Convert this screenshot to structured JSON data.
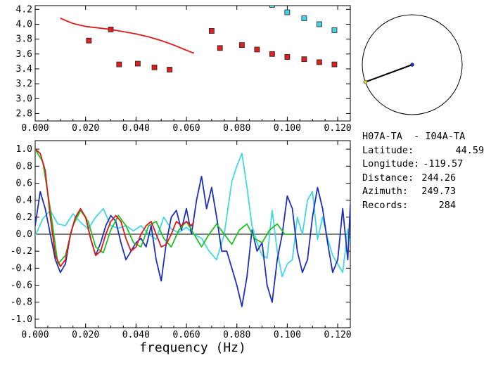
{
  "chart_data": [
    {
      "type": "scatter",
      "xlim": [
        0.0,
        0.125
      ],
      "ylim": [
        2.7,
        4.25
      ],
      "x_ticks": [
        "0.000",
        "0.020",
        "0.040",
        "0.060",
        "0.080",
        "0.100",
        "0.120"
      ],
      "y_ticks": [
        "2.8",
        "3.0",
        "3.2",
        "3.4",
        "3.6",
        "3.8",
        "4.0",
        "4.2"
      ],
      "series": [
        {
          "kind": "line",
          "color": "#dd1a1a",
          "x": [
            0.01,
            0.015,
            0.02,
            0.025,
            0.03,
            0.035,
            0.04,
            0.045,
            0.05,
            0.055,
            0.06,
            0.063
          ],
          "y": [
            4.08,
            4.01,
            3.97,
            3.95,
            3.93,
            3.9,
            3.87,
            3.83,
            3.78,
            3.72,
            3.65,
            3.61
          ]
        },
        {
          "kind": "markers",
          "color": "#dd2020",
          "x": [
            0.0213,
            0.03,
            0.0333,
            0.0407,
            0.0473,
            0.0533,
            0.07,
            0.0733,
            0.082,
            0.088,
            0.094,
            0.1,
            0.1067,
            0.1127,
            0.1187
          ],
          "y": [
            3.78,
            3.93,
            3.46,
            3.47,
            3.42,
            3.39,
            3.91,
            3.68,
            3.72,
            3.66,
            3.6,
            3.56,
            3.53,
            3.49,
            3.46
          ]
        },
        {
          "kind": "markers",
          "color": "#44d6e6",
          "x": [
            0.094,
            0.1,
            0.1067,
            0.1127,
            0.1187
          ],
          "y": [
            4.26,
            4.16,
            4.08,
            4.0,
            3.92
          ]
        }
      ]
    },
    {
      "type": "line",
      "xlim": [
        0.0,
        0.125
      ],
      "ylim": [
        -1.1,
        1.1
      ],
      "x_ticks": [
        "0.000",
        "0.020",
        "0.040",
        "0.060",
        "0.080",
        "0.100",
        "0.120"
      ],
      "y_ticks": [
        "1.0",
        "0.8",
        "0.6",
        "0.4",
        "0.2",
        "0.0",
        "-0.2",
        "-0.4",
        "-0.6",
        "-0.8",
        "-1.0"
      ],
      "xlabel": "frequency (Hz)",
      "series": [
        {
          "color": "#44d6e6",
          "x": [
            0.0,
            0.003,
            0.006,
            0.009,
            0.012,
            0.015,
            0.018,
            0.021,
            0.024,
            0.027,
            0.03,
            0.033,
            0.036,
            0.039,
            0.042,
            0.045,
            0.048,
            0.051,
            0.054,
            0.057,
            0.06,
            0.063,
            0.066,
            0.069,
            0.072,
            0.075,
            0.078,
            0.08,
            0.082,
            0.084,
            0.086,
            0.088,
            0.09,
            0.092,
            0.094,
            0.096,
            0.098,
            0.1,
            0.102,
            0.104,
            0.106,
            0.108,
            0.11,
            0.112,
            0.114,
            0.116,
            0.118,
            0.12,
            0.122,
            0.124,
            0.125
          ],
          "y": [
            -0.02,
            0.18,
            0.28,
            0.12,
            0.1,
            0.24,
            0.14,
            0.06,
            0.2,
            0.3,
            0.1,
            0.07,
            0.1,
            0.04,
            0.1,
            0.0,
            -0.06,
            0.2,
            0.06,
            0.02,
            0.08,
            0.0,
            -0.05,
            -0.2,
            -0.3,
            0.0,
            0.62,
            0.8,
            0.95,
            0.55,
            0.1,
            -0.1,
            -0.25,
            -0.28,
            0.28,
            -0.2,
            -0.5,
            -0.35,
            -0.3,
            0.2,
            0.0,
            0.4,
            0.5,
            -0.06,
            0.2,
            -0.05,
            -0.25,
            -0.35,
            -0.45,
            0.06,
            -0.1
          ]
        },
        {
          "color": "#1e2fb8",
          "x": [
            0.0,
            0.002,
            0.004,
            0.006,
            0.008,
            0.01,
            0.012,
            0.014,
            0.016,
            0.018,
            0.02,
            0.022,
            0.024,
            0.026,
            0.028,
            0.03,
            0.032,
            0.034,
            0.036,
            0.038,
            0.04,
            0.042,
            0.044,
            0.046,
            0.048,
            0.05,
            0.052,
            0.054,
            0.056,
            0.058,
            0.06,
            0.062,
            0.064,
            0.066,
            0.068,
            0.07,
            0.072,
            0.074,
            0.076,
            0.078,
            0.08,
            0.082,
            0.084,
            0.086,
            0.088,
            0.09,
            0.092,
            0.094,
            0.096,
            0.098,
            0.1,
            0.102,
            0.104,
            0.106,
            0.108,
            0.11,
            0.112,
            0.114,
            0.116,
            0.118,
            0.12,
            0.122,
            0.124,
            0.125
          ],
          "y": [
            0.1,
            0.5,
            0.3,
            0.0,
            -0.3,
            -0.45,
            -0.35,
            0.0,
            0.2,
            0.28,
            0.2,
            -0.05,
            -0.25,
            -0.1,
            0.1,
            0.22,
            0.15,
            -0.1,
            -0.3,
            -0.2,
            -0.1,
            -0.05,
            -0.15,
            0.1,
            -0.3,
            -0.55,
            -0.1,
            0.2,
            0.28,
            0.05,
            0.3,
            0.0,
            0.4,
            0.68,
            0.3,
            0.55,
            0.2,
            -0.2,
            -0.2,
            -0.4,
            -0.6,
            -0.85,
            -0.5,
            0.05,
            -0.2,
            -0.1,
            -0.6,
            -0.8,
            -0.3,
            0.0,
            0.45,
            0.3,
            -0.2,
            -0.45,
            -0.3,
            0.2,
            0.55,
            0.3,
            -0.1,
            -0.45,
            -0.3,
            0.3,
            -0.3,
            0.35
          ]
        },
        {
          "color": "#22c022",
          "x": [
            0.0,
            0.003,
            0.006,
            0.009,
            0.012,
            0.015,
            0.018,
            0.021,
            0.024,
            0.027,
            0.03,
            0.033,
            0.036,
            0.039,
            0.042,
            0.045,
            0.048,
            0.051,
            0.054,
            0.057,
            0.06,
            0.063,
            0.066,
            0.069,
            0.072,
            0.075,
            0.078,
            0.081,
            0.084,
            0.087,
            0.09,
            0.093,
            0.096,
            0.099,
            0.102
          ],
          "y": [
            1.0,
            0.85,
            0.3,
            -0.35,
            -0.25,
            0.1,
            0.28,
            0.15,
            -0.15,
            -0.22,
            0.05,
            0.22,
            0.1,
            -0.1,
            -0.15,
            0.1,
            0.15,
            -0.05,
            -0.15,
            0.05,
            0.15,
            0.0,
            -0.15,
            0.0,
            0.12,
            0.0,
            -0.12,
            0.05,
            0.12,
            -0.05,
            -0.1,
            0.05,
            0.12,
            0.0,
            0.0
          ]
        },
        {
          "color": "#dd1a1a",
          "x": [
            0.0,
            0.002,
            0.004,
            0.006,
            0.008,
            0.01,
            0.012,
            0.014,
            0.016,
            0.018,
            0.02,
            0.022,
            0.024,
            0.026,
            0.028,
            0.03,
            0.032,
            0.034,
            0.036,
            0.038,
            0.04,
            0.042,
            0.044,
            0.046,
            0.048,
            0.05,
            0.052,
            0.054,
            0.056,
            0.058,
            0.06,
            0.062,
            0.063
          ],
          "y": [
            1.0,
            0.95,
            0.75,
            0.2,
            -0.25,
            -0.38,
            -0.3,
            0.0,
            0.2,
            0.3,
            0.2,
            -0.05,
            -0.25,
            -0.2,
            0.0,
            0.15,
            0.22,
            0.15,
            -0.05,
            -0.2,
            -0.15,
            0.0,
            0.1,
            0.15,
            0.0,
            -0.15,
            -0.12,
            0.0,
            0.15,
            0.1,
            0.15,
            0.1,
            0.15
          ]
        }
      ]
    }
  ],
  "polar": {
    "azimuth_deg": 249.73,
    "radius_fraction": 1.0,
    "center_color": "#1e2fb8",
    "end_color": "#e6d24a"
  },
  "info": {
    "station": "H07A-TA  - I04A-TA",
    "latitude_label": "Latitude:",
    "latitude": "44.59",
    "longitude_label": "Longitude:",
    "longitude": "-119.57",
    "distance_label": "Distance:",
    "distance": "244.26",
    "azimuth_label": "Azimuth:",
    "azimuth": "249.73",
    "records_label": "Records:",
    "records": "284"
  }
}
